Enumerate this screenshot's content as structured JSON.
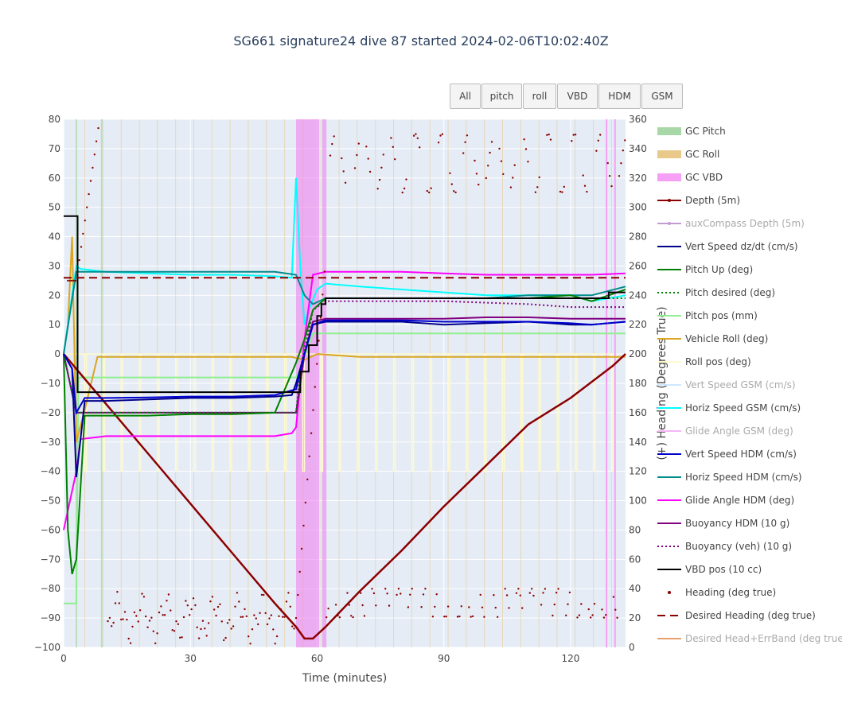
{
  "title": "SG661 signature24 dive 87 started 2024-02-06T10:02:40Z",
  "buttons": [
    "All",
    "pitch",
    "roll",
    "VBD",
    "HDM",
    "GSM"
  ],
  "chart_data": {
    "type": "line",
    "xlabel": "Time (minutes)",
    "ylabel_left": "",
    "ylabel_right": "(+) Heading (Degrees True)",
    "xlim": [
      0,
      133
    ],
    "ylim_left": [
      -100,
      80
    ],
    "ylim_right": [
      0,
      360
    ],
    "x_ticks": [
      0,
      30,
      60,
      90,
      120
    ],
    "y_ticks_left": [
      80,
      70,
      60,
      50,
      40,
      30,
      20,
      10,
      0,
      -10,
      -20,
      -30,
      -40,
      -50,
      -60,
      -70,
      -80,
      -90,
      -100
    ],
    "y_ticks_right": [
      360,
      340,
      320,
      300,
      280,
      260,
      240,
      220,
      200,
      180,
      160,
      140,
      120,
      100,
      80,
      60,
      40,
      20,
      0
    ],
    "legend_placement": "right",
    "vbd_band": [
      55,
      60.5
    ],
    "series": [
      {
        "name": "GC Pitch",
        "color": "#a8d8a8",
        "style": "band"
      },
      {
        "name": "GC Roll",
        "color": "#e8c98a",
        "style": "band"
      },
      {
        "name": "GC VBD",
        "color": "#f5a0f5",
        "style": "band"
      },
      {
        "name": "Depth (5m)",
        "color": "#8b0000",
        "style": "line-marker",
        "x": [
          0,
          10,
          20,
          30,
          40,
          50,
          55,
          57,
          59,
          62,
          70,
          80,
          90,
          100,
          110,
          120,
          130,
          133
        ],
        "y": [
          0,
          -17,
          -34,
          -51,
          -68,
          -85,
          -93,
          -97,
          -97,
          -93,
          -81,
          -67,
          -52,
          -38,
          -24,
          -15,
          -4,
          0
        ]
      },
      {
        "name": "auxCompass Depth (5m)",
        "color": "#c39bd3",
        "style": "line-marker",
        "hidden": true
      },
      {
        "name": "Vert Speed dz/dt (cm/s)",
        "color": "#00008b",
        "style": "line",
        "x": [
          0,
          2,
          3,
          5,
          10,
          20,
          30,
          40,
          50,
          54,
          55,
          57,
          59,
          62,
          70,
          80,
          90,
          100,
          110,
          120,
          125,
          133
        ],
        "y": [
          0,
          -5,
          -42,
          -16,
          -16,
          -15.5,
          -15,
          -15,
          -14.5,
          -14,
          -10,
          0,
          10,
          11,
          11,
          11,
          10,
          10.5,
          11,
          10,
          10,
          11
        ]
      },
      {
        "name": "Pitch Up (deg)",
        "color": "#008000",
        "style": "line",
        "x": [
          0,
          1,
          2,
          3,
          5,
          10,
          20,
          30,
          40,
          50,
          55,
          57,
          59,
          62,
          70,
          80,
          90,
          100,
          110,
          120,
          125,
          133
        ],
        "y": [
          0,
          -60,
          -75,
          -70,
          -21,
          -21,
          -21,
          -20.5,
          -20.5,
          -20,
          -3,
          5,
          15,
          19,
          19,
          19,
          19,
          19,
          19,
          20,
          18,
          22
        ]
      },
      {
        "name": "Pitch desired (deg)",
        "color": "#008000",
        "style": "dot",
        "x": [
          0,
          3,
          5,
          55,
          56,
          59,
          62,
          133
        ],
        "y": [
          0,
          -20,
          -20,
          -20,
          -5,
          15,
          19,
          19
        ]
      },
      {
        "name": "Pitch pos (mm)",
        "color": "#90ee90",
        "style": "line",
        "x": [
          0,
          3,
          3.5,
          55,
          56,
          59,
          62,
          133
        ],
        "y": [
          -85,
          -85,
          -8,
          -8,
          -5,
          7,
          7,
          7
        ]
      },
      {
        "name": "Vehicle Roll (deg)",
        "color": "#daa520",
        "style": "line",
        "x": [
          0,
          1,
          2,
          3,
          5,
          8,
          20,
          40,
          54,
          57,
          60,
          70,
          100,
          133
        ],
        "y": [
          0,
          10,
          40,
          -30,
          -19,
          -1,
          -1,
          -1,
          -1,
          -2,
          0,
          -1,
          -1,
          -1
        ]
      },
      {
        "name": "Roll pos (deg)",
        "color": "#fffacd",
        "style": "line",
        "x": [
          0,
          133
        ],
        "y": [
          0,
          0
        ]
      },
      {
        "name": "Vert Speed GSM (cm/s)",
        "color": "#cfe8ff",
        "style": "line",
        "hidden": true
      },
      {
        "name": "Horiz Speed GSM (cm/s)",
        "color": "#00ffff",
        "style": "line",
        "x": [
          0,
          3,
          4,
          10,
          20,
          30,
          40,
          50,
          54,
          55,
          56,
          57,
          58,
          60,
          62,
          70,
          80,
          90,
          100,
          110,
          120,
          125,
          133
        ],
        "y": [
          0,
          30,
          29,
          28,
          27.5,
          27,
          27,
          26.5,
          26,
          60,
          30,
          10,
          15,
          22,
          24,
          23,
          22,
          21,
          20,
          20,
          20,
          18,
          20
        ]
      },
      {
        "name": "Glide Angle GSM (deg)",
        "color": "#f5b7f5",
        "style": "line",
        "hidden": true
      },
      {
        "name": "Vert Speed HDM (cm/s)",
        "color": "#0000cd",
        "style": "line",
        "x": [
          0,
          2,
          3,
          5,
          10,
          20,
          30,
          40,
          50,
          55,
          57,
          59,
          62,
          70,
          80,
          90,
          100,
          110,
          120,
          125,
          133
        ],
        "y": [
          0,
          -5,
          -20,
          -15,
          -15,
          -14.8,
          -14.5,
          -14.5,
          -14,
          -12,
          0,
          10,
          11.5,
          11.5,
          11.5,
          11,
          11,
          11,
          10.5,
          10,
          11
        ]
      },
      {
        "name": "Horiz Speed HDM (cm/s)",
        "color": "#008b8b",
        "style": "line",
        "x": [
          0,
          3,
          4,
          10,
          20,
          30,
          40,
          50,
          55,
          57,
          59,
          62,
          70,
          80,
          90,
          100,
          110,
          120,
          125,
          133
        ],
        "y": [
          0,
          28,
          28,
          28,
          28,
          28,
          28,
          28,
          27,
          20,
          17,
          19,
          19,
          19,
          19,
          19,
          20,
          20,
          20,
          23
        ]
      },
      {
        "name": "Glide Angle HDM (deg)",
        "color": "#ff00ff",
        "style": "line",
        "x": [
          0,
          3,
          4,
          10,
          20,
          30,
          40,
          50,
          54,
          55,
          56,
          57,
          59,
          62,
          70,
          80,
          90,
          100,
          110,
          120,
          125,
          133
        ],
        "y": [
          -60,
          -40,
          -29,
          -28,
          -28,
          -28,
          -28,
          -28,
          -27,
          -25,
          -10,
          5,
          27,
          28,
          28,
          28,
          27.5,
          27,
          27,
          27,
          27,
          27.5
        ]
      },
      {
        "name": "Buoyancy HDM (10 g)",
        "color": "#800080",
        "style": "line",
        "x": [
          0,
          3,
          5,
          10,
          20,
          30,
          40,
          50,
          55,
          57,
          59,
          62,
          70,
          80,
          90,
          100,
          110,
          120,
          125,
          133
        ],
        "y": [
          0,
          -20,
          -20,
          -20,
          -20,
          -20,
          -20,
          -20,
          -20,
          0,
          11,
          12,
          12,
          12,
          12,
          12.5,
          12.5,
          12,
          12,
          12
        ]
      },
      {
        "name": "Buoyancy (veh) (10 g)",
        "color": "#800080",
        "style": "dot",
        "x": [
          0,
          3,
          55,
          57,
          59,
          62,
          70,
          80,
          90,
          100,
          110,
          120,
          133
        ],
        "y": [
          0,
          -20,
          -20,
          0,
          15,
          18,
          18,
          18,
          18,
          17.5,
          17,
          16,
          16
        ]
      },
      {
        "name": "VBD pos (10 cc)",
        "color": "#000000",
        "style": "step",
        "x": [
          0,
          3,
          3.3,
          55,
          56,
          58,
          60,
          61,
          62,
          128,
          129,
          133
        ],
        "y": [
          47,
          47,
          -13,
          -13,
          -6,
          3,
          13,
          17,
          19,
          19,
          21,
          21
        ]
      },
      {
        "name": "Heading (deg true)",
        "color": "#8b0000",
        "style": "marker-right"
      },
      {
        "name": "Desired Heading (deg true)",
        "color": "#8b0000",
        "style": "dash-right",
        "x": [
          0,
          133
        ],
        "y": [
          252,
          252
        ]
      },
      {
        "name": "Desired Head+ErrBand (deg true)",
        "color": "#e8a070",
        "style": "line",
        "hidden": true
      }
    ]
  }
}
